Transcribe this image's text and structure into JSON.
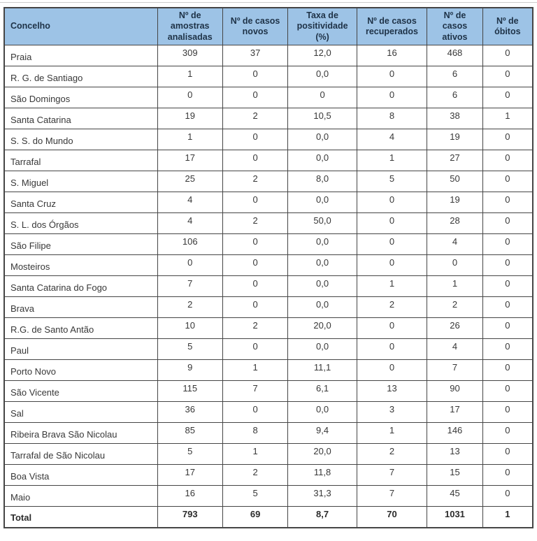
{
  "colors": {
    "header_bg": "#9dc3e6",
    "header_text": "#1e3247",
    "border": "#454545",
    "body_text": "#383838",
    "page_bg": "#ffffff"
  },
  "table": {
    "columns": [
      "Concelho",
      "Nº de amostras analisadas",
      "Nº de casos novos",
      "Taxa de positividade (%)",
      "Nº de casos recuperados",
      "Nº de casos ativos",
      "Nº de óbitos"
    ],
    "rows": [
      {
        "concelho": "Praia",
        "values": [
          "309",
          "37",
          "12,0",
          "16",
          "468",
          "0"
        ]
      },
      {
        "concelho": "R. G. de Santiago",
        "values": [
          "1",
          "0",
          "0,0",
          "0",
          "6",
          "0"
        ]
      },
      {
        "concelho": "São Domingos",
        "values": [
          "0",
          "0",
          "0",
          "0",
          "6",
          "0"
        ]
      },
      {
        "concelho": "Santa Catarina",
        "values": [
          "19",
          "2",
          "10,5",
          "8",
          "38",
          "1"
        ]
      },
      {
        "concelho": "S. S. do Mundo",
        "values": [
          "1",
          "0",
          "0,0",
          "4",
          "19",
          "0"
        ]
      },
      {
        "concelho": "Tarrafal",
        "values": [
          "17",
          "0",
          "0,0",
          "1",
          "27",
          "0"
        ]
      },
      {
        "concelho": "S. Miguel",
        "values": [
          "25",
          "2",
          "8,0",
          "5",
          "50",
          "0"
        ]
      },
      {
        "concelho": "Santa Cruz",
        "values": [
          "4",
          "0",
          "0,0",
          "0",
          "19",
          "0"
        ]
      },
      {
        "concelho": "S. L. dos Órgãos",
        "values": [
          "4",
          "2",
          "50,0",
          "0",
          "28",
          "0"
        ]
      },
      {
        "concelho": "São Filipe",
        "values": [
          "106",
          "0",
          "0,0",
          "0",
          "4",
          "0"
        ]
      },
      {
        "concelho": "Mosteiros",
        "values": [
          "0",
          "0",
          "0,0",
          "0",
          "0",
          "0"
        ]
      },
      {
        "concelho": "Santa Catarina do Fogo",
        "values": [
          "7",
          "0",
          "0,0",
          "1",
          "1",
          "0"
        ]
      },
      {
        "concelho": "Brava",
        "values": [
          "2",
          "0",
          "0,0",
          "2",
          "2",
          "0"
        ]
      },
      {
        "concelho": "R.G. de Santo Antão",
        "values": [
          "10",
          "2",
          "20,0",
          "0",
          "26",
          "0"
        ]
      },
      {
        "concelho": "Paul",
        "values": [
          "5",
          "0",
          "0,0",
          "0",
          "4",
          "0"
        ]
      },
      {
        "concelho": "Porto Novo",
        "values": [
          "9",
          "1",
          "11,1",
          "0",
          "7",
          "0"
        ]
      },
      {
        "concelho": "São Vicente",
        "values": [
          "115",
          "7",
          "6,1",
          "13",
          "90",
          "0"
        ]
      },
      {
        "concelho": "Sal",
        "values": [
          "36",
          "0",
          "0,0",
          "3",
          "17",
          "0"
        ]
      },
      {
        "concelho": "Ribeira Brava São Nicolau",
        "values": [
          "85",
          "8",
          "9,4",
          "1",
          "146",
          "0"
        ]
      },
      {
        "concelho": "Tarrafal de São Nicolau",
        "values": [
          "5",
          "1",
          "20,0",
          "2",
          "13",
          "0"
        ]
      },
      {
        "concelho": "Boa Vista",
        "values": [
          "17",
          "2",
          "11,8",
          "7",
          "15",
          "0"
        ]
      },
      {
        "concelho": "Maio",
        "values": [
          "16",
          "5",
          "31,3",
          "7",
          "45",
          "0"
        ]
      }
    ],
    "total": {
      "label": "Total",
      "values": [
        "793",
        "69",
        "8,7",
        "70",
        "1031",
        "1"
      ]
    }
  }
}
